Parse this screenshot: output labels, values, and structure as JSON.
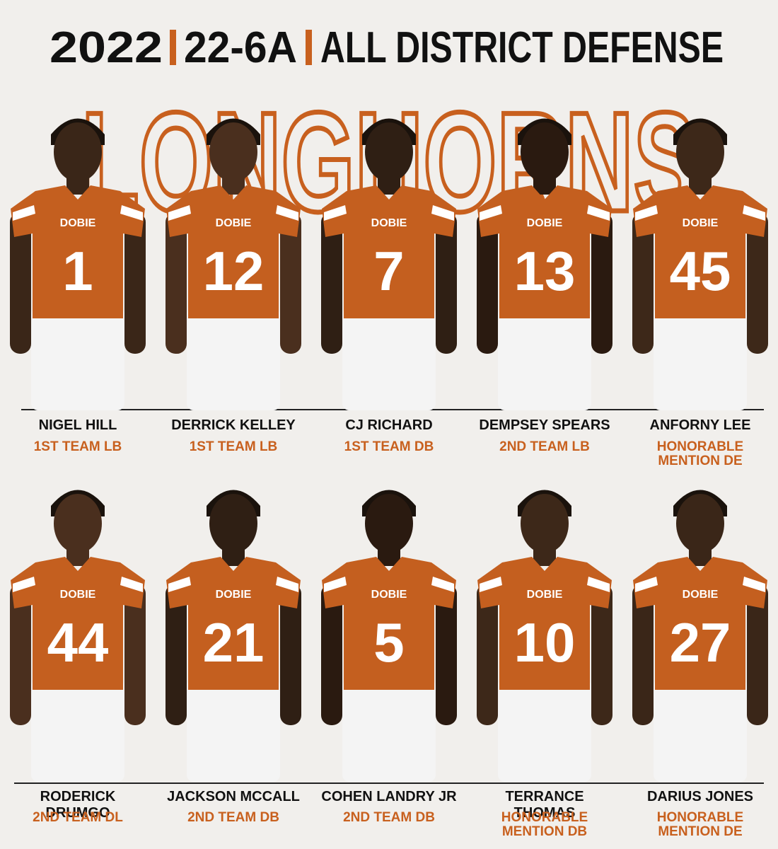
{
  "header": {
    "year": "2022",
    "district": "22-6A",
    "title": "ALL DISTRICT DEFENSE",
    "team": "LONGHORNS"
  },
  "jersey_text": "DOBIE",
  "rows": [
    [
      {
        "name": "NIGEL HILL",
        "honor": "1ST TEAM LB",
        "number": "1"
      },
      {
        "name": "DERRICK KELLEY",
        "honor": "1ST TEAM LB",
        "number": "12"
      },
      {
        "name": "CJ RICHARD",
        "honor": "1ST TEAM DB",
        "number": "7"
      },
      {
        "name": "DEMPSEY SPEARS",
        "honor": "2ND TEAM LB",
        "number": "13"
      },
      {
        "name": "ANFORNY LEE",
        "honor": "HONORABLE MENTION DE",
        "number": "45"
      }
    ],
    [
      {
        "name": "RODERICK DRUMGO",
        "honor": "2ND TEAM DL",
        "number": "44"
      },
      {
        "name": "JACKSON MCCALL",
        "honor": "2ND TEAM DB",
        "number": "21"
      },
      {
        "name": "COHEN LANDRY JR",
        "honor": "2ND TEAM DB",
        "number": "5"
      },
      {
        "name": "TERRANCE THOMAS",
        "honor": "HONORABLE MENTION DB",
        "number": "10"
      },
      {
        "name": "DARIUS JONES",
        "honor": "HONORABLE MENTION DE",
        "number": "27"
      }
    ]
  ]
}
